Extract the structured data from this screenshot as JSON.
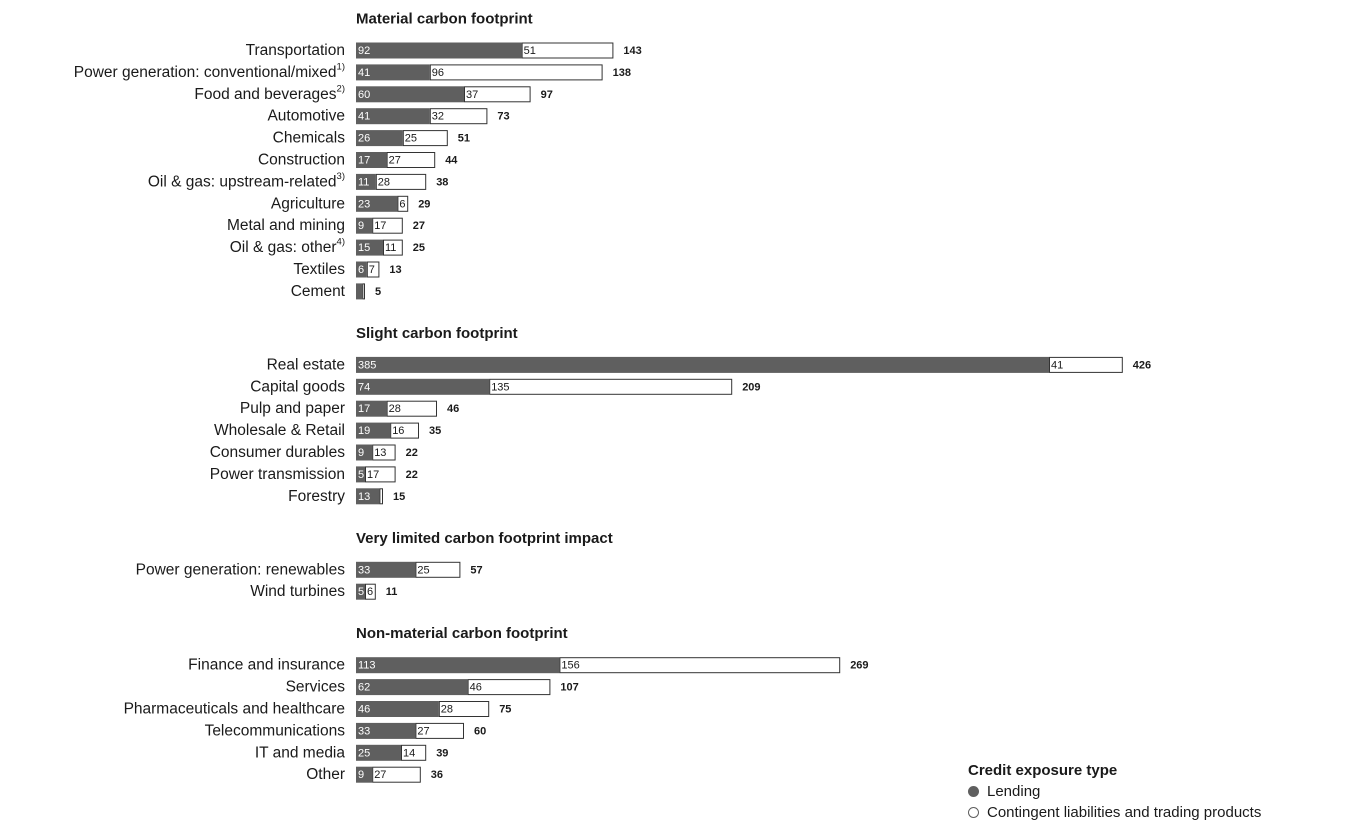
{
  "colors": {
    "lending": "#5f5f5f",
    "contingent": "#ffffff",
    "outline": "#333333",
    "text": "#1a1a1a"
  },
  "legend": {
    "title": "Credit exposure type",
    "items": [
      {
        "label": "Lending",
        "style": "filled"
      },
      {
        "label": "Contingent liabilities and trading products",
        "style": "outline"
      }
    ]
  },
  "chart_data": {
    "type": "bar",
    "orientation": "horizontal",
    "stacked": true,
    "groups": [
      {
        "title": "Material carbon footprint",
        "categories": [
          {
            "label": "Transportation",
            "note": "",
            "lending": 92,
            "contingent": 51,
            "total": 143
          },
          {
            "label": "Power generation: conventional/mixed",
            "note": "1)",
            "lending": 41,
            "contingent": 96,
            "total": 138
          },
          {
            "label": "Food and beverages",
            "note": "2)",
            "lending": 60,
            "contingent": 37,
            "total": 97
          },
          {
            "label": "Automotive",
            "note": "",
            "lending": 41,
            "contingent": 32,
            "total": 73
          },
          {
            "label": "Chemicals",
            "note": "",
            "lending": 26,
            "contingent": 25,
            "total": 51
          },
          {
            "label": "Construction",
            "note": "",
            "lending": 17,
            "contingent": 27,
            "total": 44
          },
          {
            "label": "Oil & gas: upstream-related",
            "note": "3)",
            "lending": 11,
            "contingent": 28,
            "total": 38
          },
          {
            "label": "Agriculture",
            "note": "",
            "lending": 23,
            "contingent": 6,
            "total": 29
          },
          {
            "label": "Metal and mining",
            "note": "",
            "lending": 9,
            "contingent": 17,
            "total": 27
          },
          {
            "label": "Oil & gas: other",
            "note": "4)",
            "lending": 15,
            "contingent": 11,
            "total": 25
          },
          {
            "label": "Textiles",
            "note": "",
            "lending": 6,
            "contingent": 7,
            "total": 13
          },
          {
            "label": "Cement",
            "note": "",
            "lending": 3.5,
            "contingent": 1.5,
            "total": 5,
            "show_segment_labels": false
          }
        ]
      },
      {
        "title": "Slight carbon footprint",
        "categories": [
          {
            "label": "Real estate",
            "note": "",
            "lending": 385,
            "contingent": 41,
            "total": 426
          },
          {
            "label": "Capital goods",
            "note": "",
            "lending": 74,
            "contingent": 135,
            "total": 209
          },
          {
            "label": "Pulp and paper",
            "note": "",
            "lending": 17,
            "contingent": 28,
            "total": 46
          },
          {
            "label": "Wholesale & Retail",
            "note": "",
            "lending": 19,
            "contingent": 16,
            "total": 35
          },
          {
            "label": "Consumer durables",
            "note": "",
            "lending": 9,
            "contingent": 13,
            "total": 22
          },
          {
            "label": "Power transmission",
            "note": "",
            "lending": 5,
            "contingent": 17,
            "total": 22
          },
          {
            "label": "Forestry",
            "note": "",
            "lending": 13,
            "contingent": 2,
            "total": 15,
            "show_contingent_label": false
          }
        ]
      },
      {
        "title": "Very limited carbon footprint impact",
        "categories": [
          {
            "label": "Power generation: renewables",
            "note": "",
            "lending": 33,
            "contingent": 25,
            "total": 57
          },
          {
            "label": "Wind turbines",
            "note": "",
            "lending": 5,
            "contingent": 6,
            "total": 11
          }
        ]
      },
      {
        "title": "Non-material carbon footprint",
        "categories": [
          {
            "label": "Finance and insurance",
            "note": "",
            "lending": 113,
            "contingent": 156,
            "total": 269
          },
          {
            "label": "Services",
            "note": "",
            "lending": 62,
            "contingent": 46,
            "total": 107
          },
          {
            "label": "Pharmaceuticals and healthcare",
            "note": "",
            "lending": 46,
            "contingent": 28,
            "total": 75
          },
          {
            "label": "Telecommunications",
            "note": "",
            "lending": 33,
            "contingent": 27,
            "total": 60
          },
          {
            "label": "IT and media",
            "note": "",
            "lending": 25,
            "contingent": 14,
            "total": 39
          },
          {
            "label": "Other",
            "note": "",
            "lending": 9,
            "contingent": 27,
            "total": 36
          }
        ]
      }
    ],
    "series": [
      {
        "name": "Lending",
        "key": "lending"
      },
      {
        "name": "Contingent liabilities and trading products",
        "key": "contingent"
      }
    ],
    "grid": false,
    "legend_position": "bottom-right"
  }
}
